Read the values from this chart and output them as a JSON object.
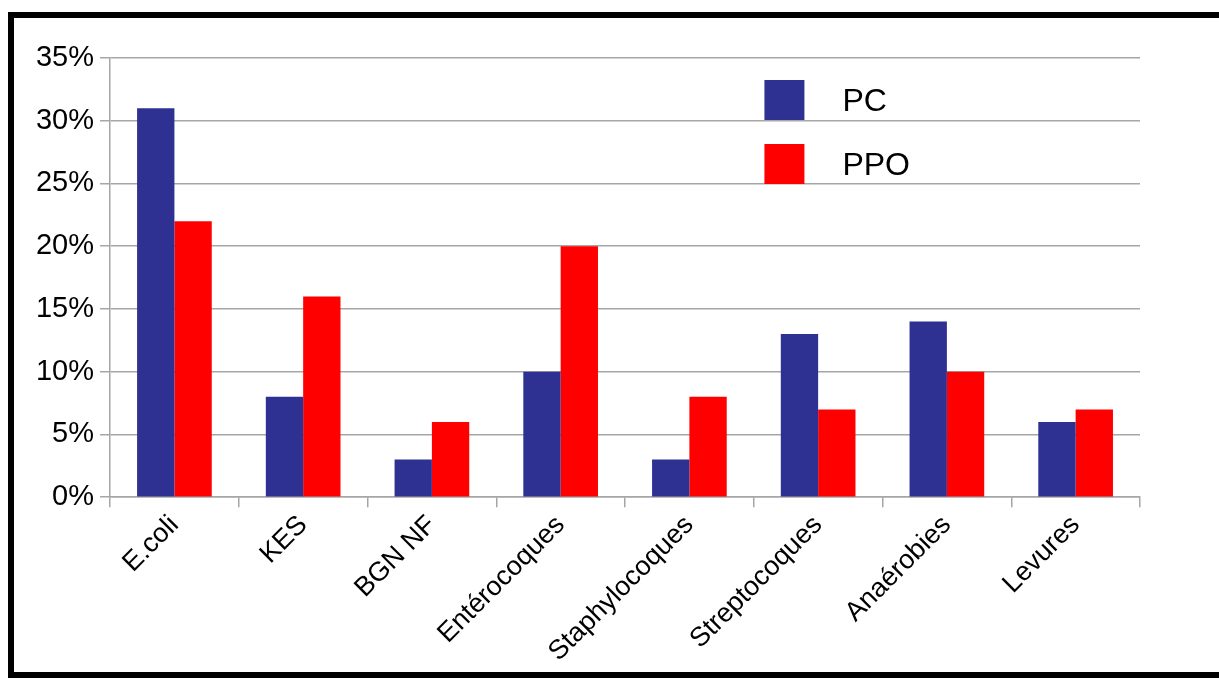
{
  "chart_data": {
    "type": "bar",
    "categories": [
      "E.coli",
      "KES",
      "BGN NF",
      "Entérocoques",
      "Staphylocoques",
      "Streptocoques",
      "Anaérobies",
      "Levures"
    ],
    "series": [
      {
        "name": "PC",
        "color": "#2e3192",
        "values": [
          31,
          8,
          3,
          10,
          3,
          13,
          14,
          6
        ]
      },
      {
        "name": "PPO",
        "color": "#ff0000",
        "values": [
          22,
          16,
          6,
          20,
          8,
          7,
          10,
          7
        ]
      }
    ],
    "ylim": [
      0,
      35
    ],
    "yticks": [
      {
        "value": 0,
        "label": "0%"
      },
      {
        "value": 5,
        "label": "5%"
      },
      {
        "value": 10,
        "label": "10%"
      },
      {
        "value": 15,
        "label": "15%"
      },
      {
        "value": 20,
        "label": "20%"
      },
      {
        "value": 25,
        "label": "25%"
      },
      {
        "value": 30,
        "label": "30%"
      },
      {
        "value": 35,
        "label": "35%"
      }
    ],
    "grid": "y",
    "legend": "top right"
  }
}
